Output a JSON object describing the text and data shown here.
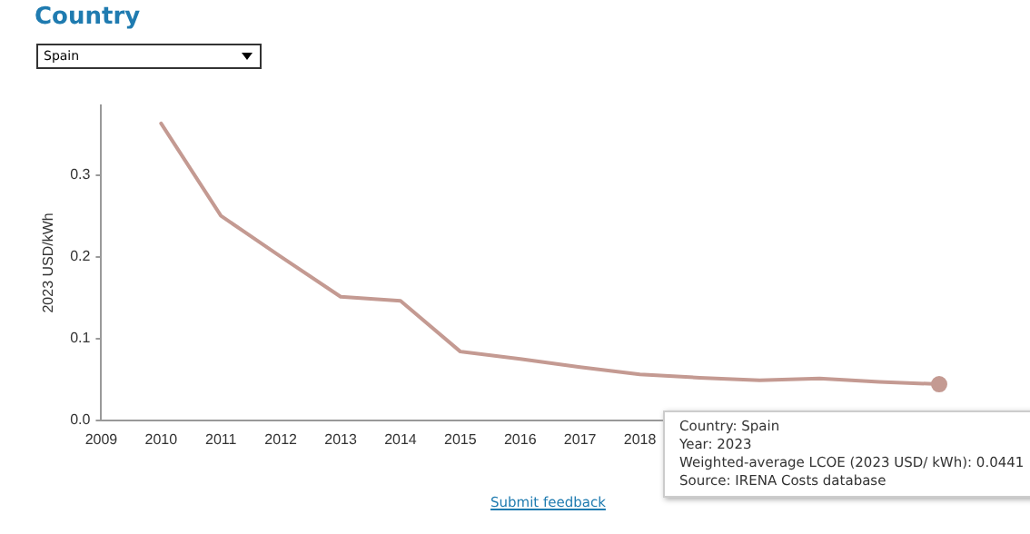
{
  "chart_data": {
    "type": "line",
    "title": "Country",
    "ylabel": "2023 USD/kWh",
    "categories": [
      "2009",
      "2010",
      "2011",
      "2012",
      "2013",
      "2014",
      "2015",
      "2016",
      "2017",
      "2018",
      null,
      null,
      null,
      null,
      null
    ],
    "series": [
      {
        "color": "#c49a92",
        "values": [
          null,
          0.363,
          0.25,
          0.2,
          0.151,
          0.146,
          0.084,
          0.075,
          0.065,
          0.056,
          0.052,
          0.049,
          0.051,
          0.047,
          0.0441
        ]
      }
    ],
    "ylim": [
      0,
      0.385
    ],
    "yticks": [
      {
        "value": 0,
        "label": "0.0"
      },
      0.1,
      0.2,
      0.3
    ],
    "grid": false,
    "legend": false,
    "marker": "none",
    "line_style": "solid",
    "annotations": [
      "Spain",
      {
        "text": "Country: Spain\nYear: 2023\nWeighted-average LCOE (2023 USD/ kWh): 0.0441\nSource: IRENA Costs database",
        "y": 0.0441
      },
      "Submit feedback"
    ]
  }
}
